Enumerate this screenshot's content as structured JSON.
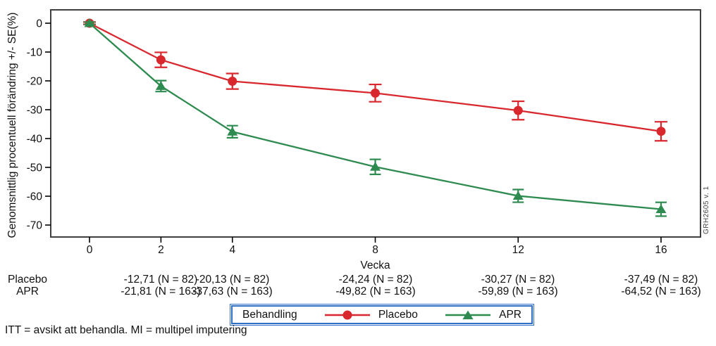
{
  "chart_data": {
    "type": "line",
    "title": "",
    "xlabel": "Vecka",
    "ylabel": "Genomsnittlig procentuell förändring +/- SE(%)",
    "x": [
      0,
      2,
      4,
      8,
      12,
      16
    ],
    "xlim": [
      -1.1,
      17.1
    ],
    "yticks": [
      0,
      -10,
      -20,
      -30,
      -40,
      -50,
      -60,
      -70
    ],
    "ylim": [
      -74,
      4.6
    ],
    "grid": false,
    "frame_color": "#3f3f3f",
    "watermark": "GRH2605 v. 1",
    "legend_position": "bottom",
    "series": [
      {
        "name": "Placebo",
        "color": "#d9272e",
        "marker": "circle",
        "values": [
          0,
          -12.71,
          -20.13,
          -24.24,
          -30.27,
          -37.49
        ],
        "se": [
          0.4,
          2.6,
          2.7,
          3.0,
          3.2,
          3.3
        ],
        "n": 82
      },
      {
        "name": "APR",
        "color": "#2e8b50",
        "marker": "triangle",
        "values": [
          0,
          -21.81,
          -37.63,
          -49.82,
          -59.89,
          -64.52
        ],
        "se": [
          0.4,
          1.9,
          2.1,
          2.6,
          2.2,
          2.4
        ],
        "n": 163
      }
    ]
  },
  "table": {
    "week_columns": [
      2,
      4,
      8,
      12,
      16
    ],
    "rows": [
      {
        "label": "Placebo",
        "values": [
          "-12,71 (N = 82)",
          "-20,13 (N = 82)",
          "-24,24 (N = 82)",
          "-30,27 (N = 82)",
          "-37,49 (N = 82)"
        ]
      },
      {
        "label": "APR",
        "values": [
          "-21,81 (N = 163)",
          "-37,63 (N = 163)",
          "-49,82 (N = 163)",
          "-59,89 (N = 163)",
          "-64,52 (N = 163)"
        ]
      }
    ]
  },
  "legend": {
    "title": "Behandling",
    "items": [
      {
        "label": "Placebo"
      },
      {
        "label": "APR"
      }
    ],
    "border_color": "#2f6cc4"
  },
  "footer": {
    "note": "ITT = avsikt att behandla. MI = multipel imputering"
  }
}
